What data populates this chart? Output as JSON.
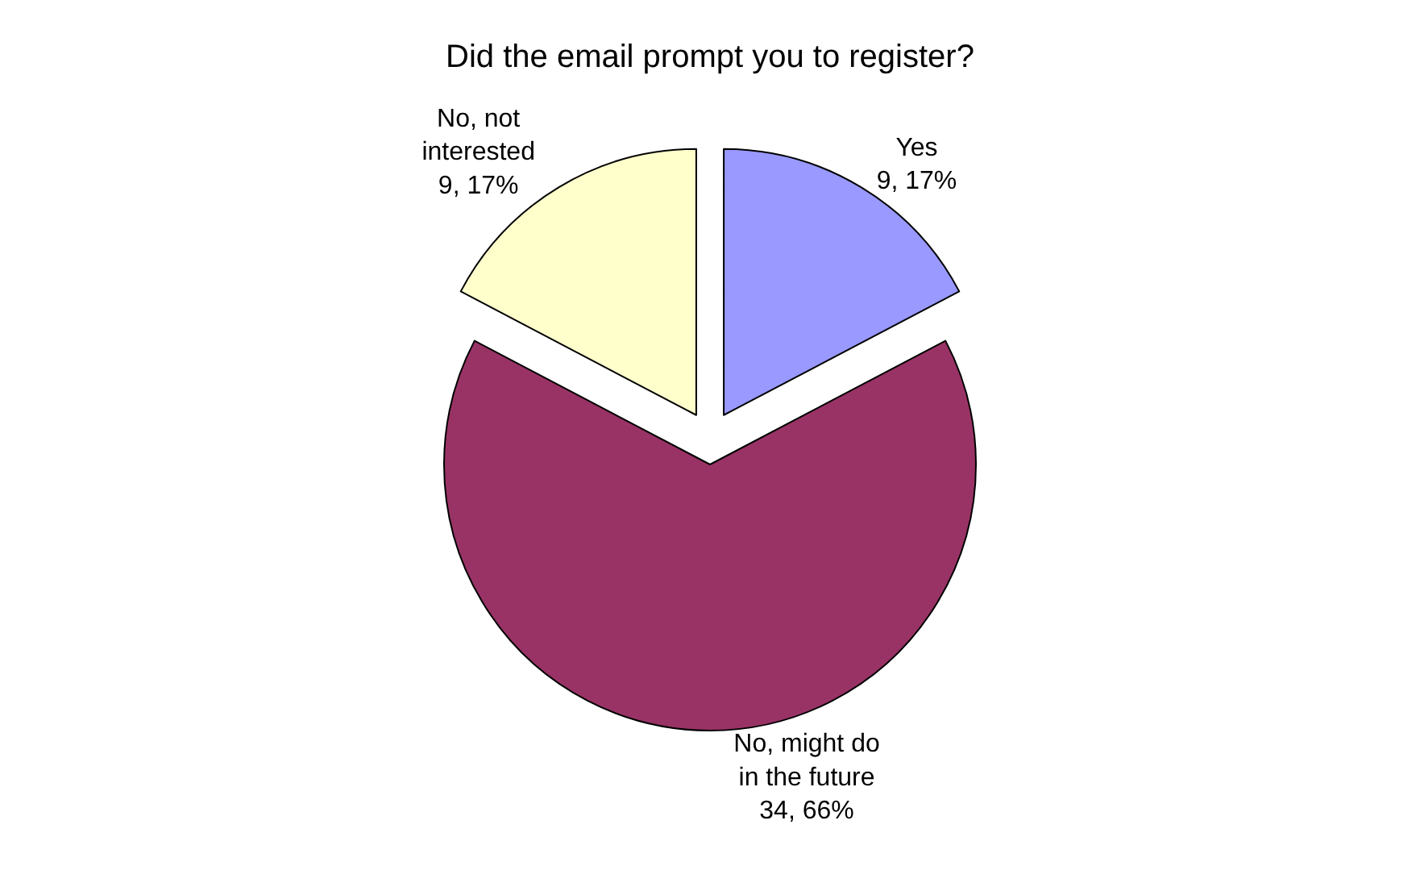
{
  "chart_data": {
    "type": "pie",
    "title": "Did the email prompt you to register?",
    "categories": [
      "Yes",
      "No, might do in the future",
      "No, not interested"
    ],
    "values": [
      9,
      34,
      9
    ],
    "value_labels": [
      "9, 17%",
      "34, 66%",
      "9, 17%"
    ],
    "colors": [
      "#9999ff",
      "#993366",
      "#ffffcc"
    ],
    "legend": false
  }
}
